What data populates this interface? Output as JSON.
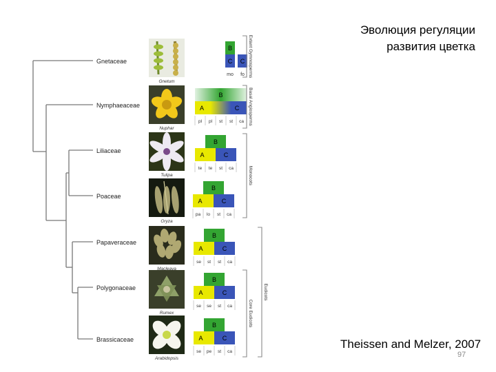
{
  "slide": {
    "title_line1": "Эволюция регуляции",
    "title_line2": "развития цветка",
    "credit": "Theissen and Melzer, 2007",
    "page_number": "97"
  },
  "taxa": [
    {
      "family": "Gnetaceae",
      "genus": "Gnetum",
      "flower": "gnetum",
      "model": {
        "type": "gym",
        "whorls": [
          "mo",
          "fo"
        ]
      }
    },
    {
      "family": "Nymphaeaceae",
      "genus": "Nuphar",
      "flower": "nuphar",
      "model": {
        "type": "gradient",
        "labels": [
          "B",
          "A",
          "C"
        ],
        "whorls": [
          "pl",
          "pl",
          "st",
          "st",
          "ca"
        ]
      }
    },
    {
      "family": "Liliaceae",
      "genus": "Tulipa",
      "flower": "tulipa",
      "model": {
        "type": "abc",
        "labels": [
          "B",
          "A",
          "C"
        ],
        "whorls": [
          "te",
          "te",
          "st",
          "ca"
        ]
      }
    },
    {
      "family": "Poaceae",
      "genus": "Oryza",
      "flower": "oryza",
      "model": {
        "type": "abc",
        "labels": [
          "B",
          "A",
          "C"
        ],
        "whorls": [
          "pa",
          "lo",
          "st",
          "ca"
        ]
      }
    },
    {
      "family": "Papaveraceae",
      "genus": "Macleaya",
      "flower": "macleaya",
      "model": {
        "type": "abc",
        "labels": [
          "B",
          "A",
          "C"
        ],
        "whorls": [
          "se",
          "st",
          "st",
          "ca"
        ]
      }
    },
    {
      "family": "Polygonaceae",
      "genus": "Rumex",
      "flower": "rumex",
      "model": {
        "type": "abc",
        "labels": [
          "B",
          "A",
          "C"
        ],
        "whorls": [
          "se",
          "se",
          "st",
          "ca"
        ]
      }
    },
    {
      "family": "Brassicaceae",
      "genus": "Arabidopsis",
      "flower": "arabidopsis",
      "model": {
        "type": "abc",
        "labels": [
          "B",
          "A",
          "C"
        ],
        "whorls": [
          "se",
          "pe",
          "st",
          "ca"
        ]
      }
    }
  ],
  "groups": [
    "Extant Gymnosperms",
    "Basal Angiosperms",
    "Monocots",
    "Eudicots",
    "Core Eudicots"
  ],
  "colors": {
    "A": "#e8e800",
    "B": "#33a532",
    "C": "#3a55b8",
    "tree": "#777777",
    "bracket": "#888888"
  }
}
